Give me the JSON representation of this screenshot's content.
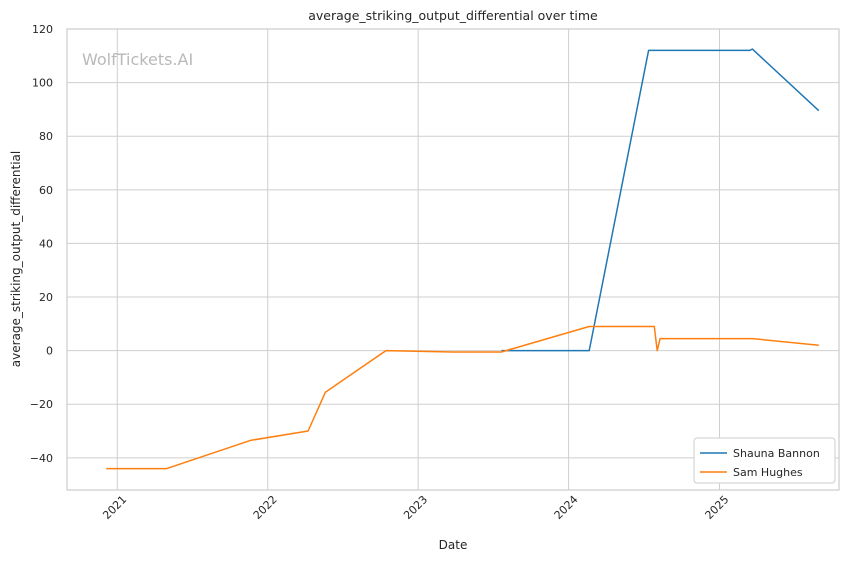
{
  "watermark": "WolfTickets.AI",
  "chart_data": {
    "type": "line",
    "title": "average_striking_output_differential over time",
    "xlabel": "Date",
    "ylabel": "average_striking_output_differential",
    "x_ticks": [
      "2021",
      "2022",
      "2023",
      "2024",
      "2025"
    ],
    "y_ticks": [
      120,
      100,
      80,
      60,
      40,
      20,
      0,
      -20,
      -40
    ],
    "xlim": [
      "2020-09-01",
      "2025-10-18"
    ],
    "ylim": [
      -52,
      120
    ],
    "grid": true,
    "legend_position": "lower right",
    "series": [
      {
        "name": "Shauna Bannon",
        "color": "#1f77b4",
        "points": [
          [
            "2023-07-22",
            0
          ],
          [
            "2024-02-20",
            0
          ],
          [
            "2024-07-13",
            112
          ],
          [
            "2025-03-15",
            112
          ],
          [
            "2025-03-22",
            112.5
          ],
          [
            "2025-08-30",
            89.5
          ]
        ]
      },
      {
        "name": "Sam Hughes",
        "color": "#ff7f0e",
        "points": [
          [
            "2020-12-05",
            -44
          ],
          [
            "2021-05-01",
            -44
          ],
          [
            "2021-11-20",
            -33.5
          ],
          [
            "2022-04-09",
            -30
          ],
          [
            "2022-05-21",
            -15.5
          ],
          [
            "2022-10-15",
            0
          ],
          [
            "2023-03-25",
            -0.5
          ],
          [
            "2023-07-22",
            -0.5
          ],
          [
            "2024-02-20",
            9
          ],
          [
            "2024-07-27",
            9
          ],
          [
            "2024-08-03",
            0
          ],
          [
            "2024-08-10",
            4.5
          ],
          [
            "2025-03-22",
            4.5
          ],
          [
            "2025-08-30",
            2
          ]
        ]
      }
    ]
  }
}
